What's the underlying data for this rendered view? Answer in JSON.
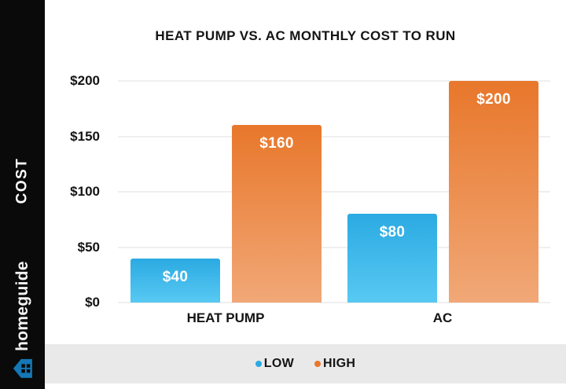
{
  "sidebar": {
    "axis_label": "COST",
    "brand_name": "homeguide",
    "brand_icon_color": "#1577b5"
  },
  "chart_data": {
    "type": "bar",
    "title": "HEAT PUMP VS. AC MONTHLY COST TO RUN",
    "categories": [
      "HEAT PUMP",
      "AC"
    ],
    "series": [
      {
        "name": "LOW",
        "values": [
          40,
          80
        ],
        "labels": [
          "$40",
          "$80"
        ],
        "color_top": "#2baae2",
        "color_bottom": "#58c9f3"
      },
      {
        "name": "HIGH",
        "values": [
          160,
          200
        ],
        "labels": [
          "$160",
          "$200"
        ],
        "color_top": "#e8772b",
        "color_bottom": "#f1a877"
      }
    ],
    "ylabel": "COST",
    "ylim": [
      0,
      200
    ],
    "ytick_step": 50,
    "yticks": [
      "$0",
      "$50",
      "$100",
      "$150",
      "$200"
    ],
    "grid": true,
    "legend_position": "bottom"
  }
}
